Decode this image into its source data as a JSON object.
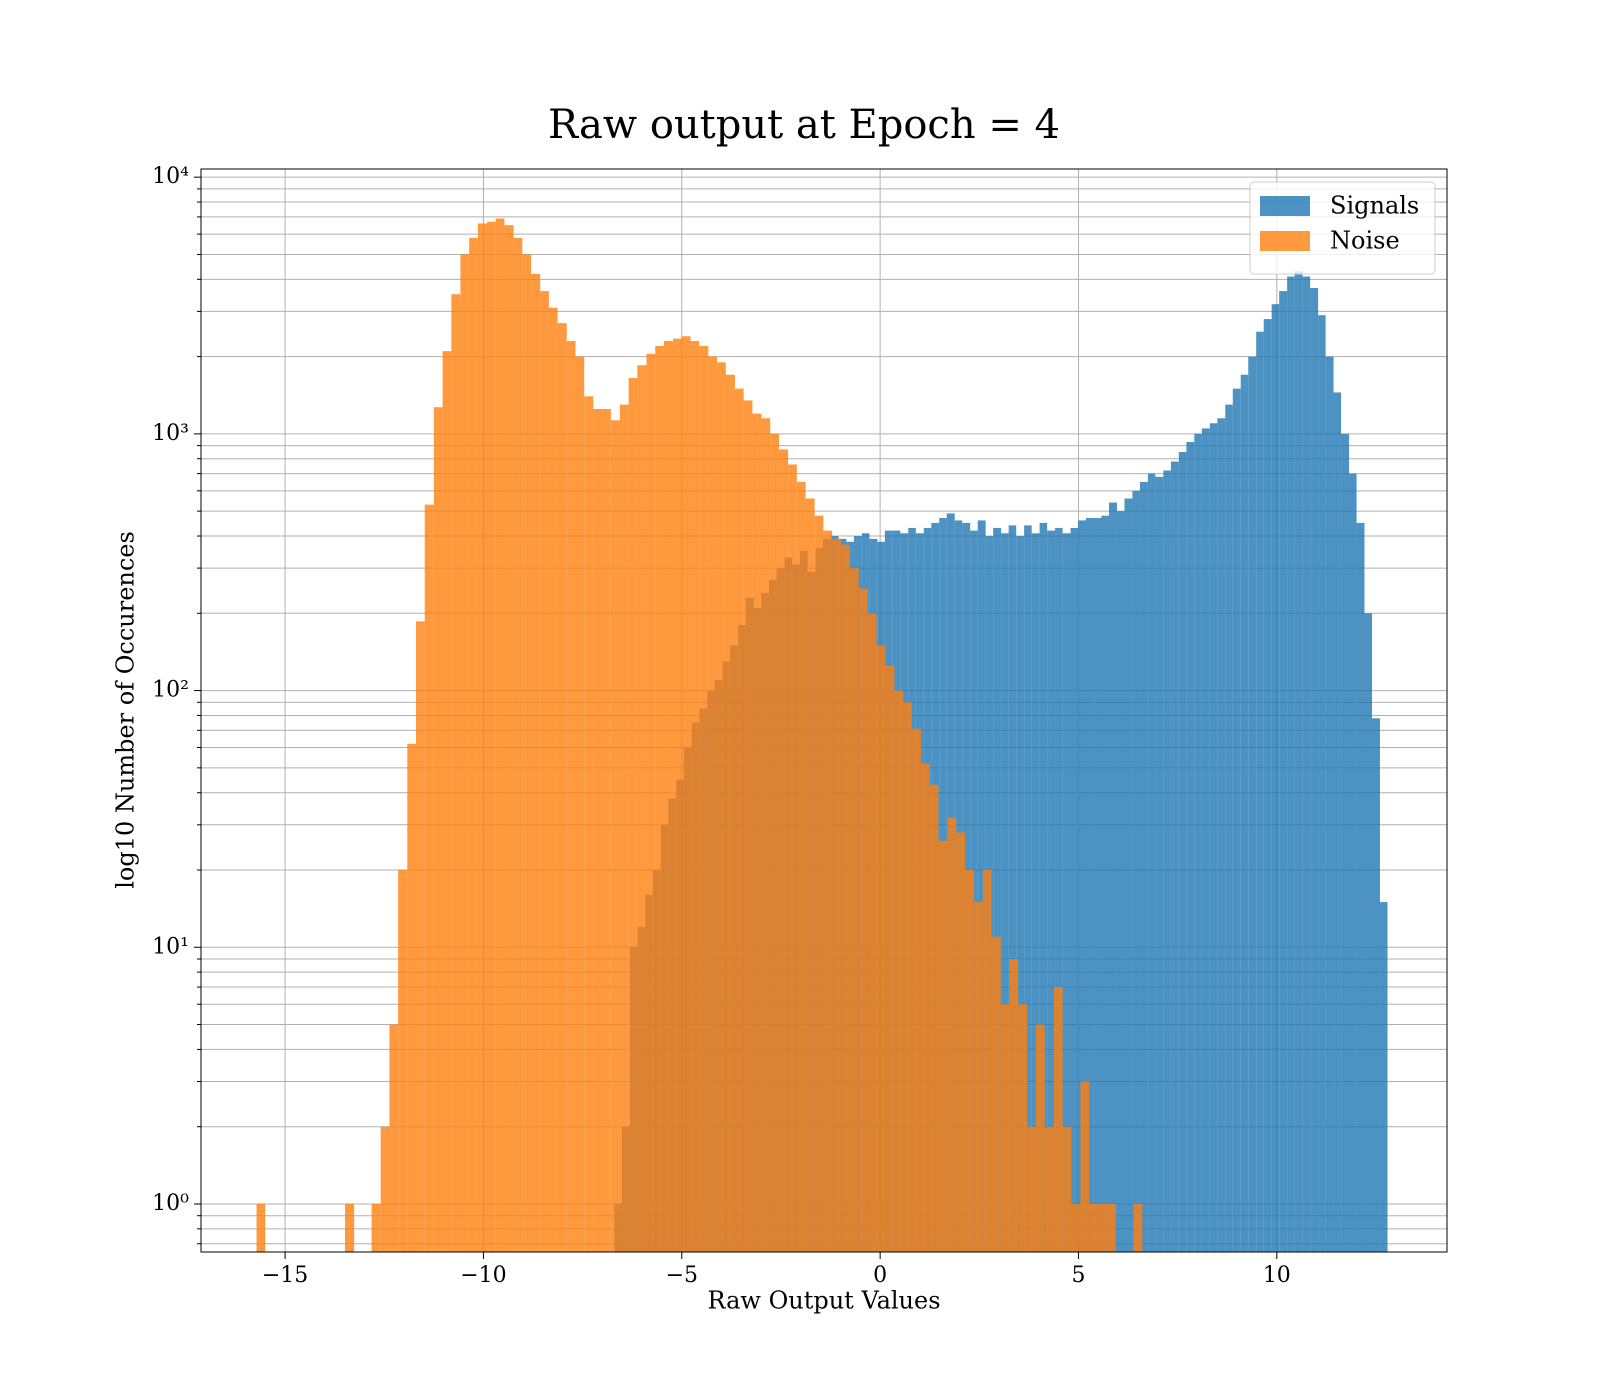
{
  "chart_data": {
    "type": "histogram",
    "title": "Raw output at Epoch = 4",
    "xlabel": "Raw Output Values",
    "ylabel": "log10 Number of Occurences",
    "yscale": "log",
    "grid": true,
    "legend": "upper right",
    "xlim": [
      -17.12,
      14.29
    ],
    "ylim": [
      0.65,
      10760
    ],
    "xticks": [
      {
        "value": -15,
        "label": "−15"
      },
      {
        "value": -10,
        "label": "−10"
      },
      {
        "value": -5,
        "label": "−5"
      },
      0,
      5,
      10
    ],
    "yticks": [
      {
        "value": 1,
        "label": "10⁰"
      },
      {
        "value": 10,
        "label": "10¹"
      },
      {
        "value": 100,
        "label": "10²"
      },
      {
        "value": 1000,
        "label": "10³"
      },
      {
        "value": 10000,
        "label": "10⁴"
      }
    ],
    "yminorticks": [
      0.7,
      0.8,
      0.9,
      2,
      3,
      4,
      5,
      6,
      7,
      8,
      9,
      20,
      30,
      40,
      50,
      60,
      70,
      80,
      90,
      200,
      300,
      400,
      500,
      600,
      700,
      800,
      900,
      2000,
      3000,
      4000,
      5000,
      6000,
      7000,
      8000,
      9000
    ],
    "series": [
      {
        "name": "Signals",
        "color": "#1f77b4",
        "bins": [
          -6.7,
          -6.51,
          -6.31,
          -6.12,
          -5.92,
          -5.73,
          -5.53,
          -5.34,
          -5.14,
          -4.95,
          -4.75,
          -4.56,
          -4.36,
          -4.17,
          -3.97,
          -3.78,
          -3.58,
          -3.39,
          -3.19,
          -3.0,
          -2.8,
          -2.61,
          -2.41,
          -2.22,
          -2.02,
          -1.83,
          -1.63,
          -1.44,
          -1.24,
          -1.05,
          -0.85,
          -0.66,
          -0.46,
          -0.27,
          -0.07,
          0.12,
          0.32,
          0.51,
          0.71,
          0.9,
          1.1,
          1.29,
          1.49,
          1.68,
          1.88,
          2.07,
          2.27,
          2.46,
          2.66,
          2.85,
          3.05,
          3.24,
          3.43,
          3.63,
          3.82,
          4.02,
          4.21,
          4.41,
          4.6,
          4.8,
          4.99,
          5.19,
          5.38,
          5.58,
          5.77,
          5.97,
          6.16,
          6.36,
          6.55,
          6.75,
          6.94,
          7.14,
          7.33,
          7.53,
          7.72,
          7.92,
          8.11,
          8.31,
          8.5,
          8.7,
          8.89,
          9.09,
          9.28,
          9.48,
          9.67,
          9.87,
          10.06,
          10.26,
          10.45,
          10.65,
          10.84,
          11.04,
          11.23,
          11.43,
          11.62,
          11.82,
          12.01,
          12.21,
          12.4,
          12.6,
          12.79
        ],
        "values": [
          1,
          2,
          10,
          12,
          16,
          20,
          30,
          38,
          45,
          60,
          75,
          85,
          100,
          110,
          130,
          150,
          180,
          230,
          210,
          240,
          270,
          300,
          330,
          310,
          350,
          290,
          360,
          390,
          400,
          390,
          380,
          400,
          410,
          390,
          380,
          420,
          420,
          410,
          430,
          410,
          430,
          450,
          470,
          490,
          460,
          450,
          420,
          460,
          400,
          430,
          410,
          440,
          400,
          440,
          410,
          450,
          420,
          430,
          410,
          430,
          460,
          470,
          470,
          480,
          540,
          500,
          560,
          600,
          650,
          700,
          680,
          720,
          780,
          850,
          930,
          1000,
          1050,
          1100,
          1150,
          1300,
          1500,
          1700,
          2000,
          2500,
          2800,
          3200,
          3600,
          4100,
          4300,
          4100,
          3700,
          2900,
          2000,
          1450,
          1000,
          700,
          450,
          200,
          78,
          15
        ]
      },
      {
        "name": "Noise",
        "color": "#ff7f0e",
        "bins": [
          -15.72,
          -15.5,
          -15.27,
          -15.05,
          -14.83,
          -14.6,
          -14.38,
          -14.16,
          -13.93,
          -13.71,
          -13.49,
          -13.26,
          -13.04,
          -12.82,
          -12.59,
          -12.37,
          -12.15,
          -11.92,
          -11.7,
          -11.48,
          -11.25,
          -11.03,
          -10.81,
          -10.58,
          -10.36,
          -10.14,
          -9.91,
          -9.69,
          -9.47,
          -9.24,
          -9.02,
          -8.8,
          -8.57,
          -8.35,
          -8.13,
          -7.9,
          -7.68,
          -7.46,
          -7.23,
          -7.01,
          -6.79,
          -6.56,
          -6.34,
          -6.12,
          -5.89,
          -5.67,
          -5.45,
          -5.22,
          -5.0,
          -4.78,
          -4.56,
          -4.33,
          -4.11,
          -3.89,
          -3.66,
          -3.44,
          -3.22,
          -2.99,
          -2.77,
          -2.55,
          -2.32,
          -2.1,
          -1.88,
          -1.65,
          -1.43,
          -1.21,
          -0.98,
          -0.76,
          -0.54,
          -0.31,
          -0.09,
          0.13,
          0.36,
          0.58,
          0.8,
          1.03,
          1.25,
          1.47,
          1.7,
          1.92,
          2.14,
          2.37,
          2.59,
          2.81,
          3.04,
          3.26,
          3.48,
          3.71,
          3.93,
          4.15,
          4.38,
          4.6,
          4.82,
          5.05,
          5.27,
          5.49,
          5.72,
          5.94,
          6.16,
          6.39,
          6.61
        ],
        "values": [
          1,
          0,
          0,
          0,
          0,
          0,
          0,
          0,
          0,
          0,
          1,
          0,
          0,
          1,
          2,
          5,
          20,
          62,
          186,
          530,
          1270,
          2100,
          3500,
          5000,
          5800,
          6600,
          6700,
          6900,
          6500,
          5800,
          5000,
          4200,
          3600,
          3100,
          2700,
          2300,
          2000,
          1400,
          1250,
          1250,
          1130,
          1300,
          1650,
          1850,
          2050,
          2200,
          2300,
          2350,
          2400,
          2300,
          2200,
          2000,
          1900,
          1700,
          1500,
          1350,
          1200,
          1150,
          1000,
          870,
          760,
          650,
          560,
          480,
          420,
          390,
          370,
          300,
          250,
          200,
          150,
          125,
          100,
          90,
          71,
          52,
          43,
          26,
          32,
          28,
          20,
          15,
          20,
          11,
          6,
          9,
          6,
          2,
          5,
          2,
          7,
          2,
          1,
          3,
          1,
          1,
          1,
          0,
          0,
          1
        ]
      }
    ]
  }
}
